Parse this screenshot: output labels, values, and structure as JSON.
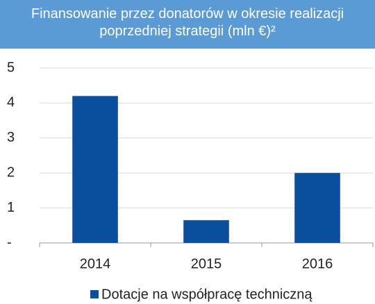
{
  "chart_data": {
    "type": "bar",
    "title": "Finansowanie przez donatorów w okresie realizacji poprzedniej strategii (mln €)²",
    "categories": [
      "2014",
      "2015",
      "2016"
    ],
    "series": [
      {
        "name": "Dotacje na współpracę techniczną",
        "color": "#0a4f9e",
        "values": [
          4.2,
          0.65,
          2.0
        ]
      }
    ],
    "ylim": [
      0,
      5
    ],
    "yticks": [
      {
        "value": 0,
        "label": "-"
      },
      1,
      2,
      3,
      4,
      5
    ],
    "grid": true,
    "legend": "bottom"
  }
}
